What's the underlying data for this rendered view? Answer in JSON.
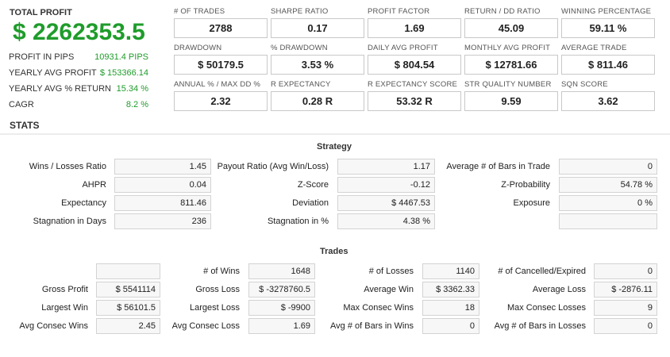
{
  "total": {
    "label": "TOTAL PROFIT",
    "value": "$ 2262353.5"
  },
  "left_stats": [
    {
      "key": "PROFIT IN PIPS",
      "value": "10931.4 PIPS"
    },
    {
      "key": "YEARLY AVG PROFIT",
      "value": "$ 153366.14"
    },
    {
      "key": "YEARLY AVG % RETURN",
      "value": "15.34 %"
    },
    {
      "key": "CAGR",
      "value": "8.2 %"
    }
  ],
  "metrics": [
    [
      {
        "label": "# OF TRADES",
        "value": "2788"
      },
      {
        "label": "SHARPE RATIO",
        "value": "0.17"
      },
      {
        "label": "PROFIT FACTOR",
        "value": "1.69"
      },
      {
        "label": "RETURN / DD RATIO",
        "value": "45.09"
      },
      {
        "label": "WINNING PERCENTAGE",
        "value": "59.11 %"
      }
    ],
    [
      {
        "label": "DRAWDOWN",
        "value": "$ 50179.5"
      },
      {
        "label": "% DRAWDOWN",
        "value": "3.53 %"
      },
      {
        "label": "DAILY AVG PROFIT",
        "value": "$ 804.54"
      },
      {
        "label": "MONTHLY AVG PROFIT",
        "value": "$ 12781.66"
      },
      {
        "label": "AVERAGE TRADE",
        "value": "$ 811.46"
      }
    ],
    [
      {
        "label": "ANNUAL % / MAX DD %",
        "value": "2.32"
      },
      {
        "label": "R EXPECTANCY",
        "value": "0.28 R"
      },
      {
        "label": "R EXPECTANCY SCORE",
        "value": "53.32 R"
      },
      {
        "label": "STR QUALITY NUMBER",
        "value": "9.59"
      },
      {
        "label": "SQN SCORE",
        "value": "3.62"
      }
    ]
  ],
  "stats_title": "STATS",
  "strategy": {
    "title": "Strategy",
    "rows": [
      [
        {
          "label": "Wins / Losses Ratio",
          "value": "1.45"
        },
        {
          "label": "Payout Ratio (Avg Win/Loss)",
          "value": "1.17"
        },
        {
          "label": "Average # of Bars in Trade",
          "value": "0"
        }
      ],
      [
        {
          "label": "AHPR",
          "value": "0.04"
        },
        {
          "label": "Z-Score",
          "value": "-0.12"
        },
        {
          "label": "Z-Probability",
          "value": "54.78 %"
        }
      ],
      [
        {
          "label": "Expectancy",
          "value": "811.46"
        },
        {
          "label": "Deviation",
          "value": "$ 4467.53"
        },
        {
          "label": "Exposure",
          "value": "0 %"
        }
      ],
      [
        {
          "label": "Stagnation in Days",
          "value": "236"
        },
        {
          "label": "Stagnation in %",
          "value": "4.38 %"
        },
        {
          "label": "",
          "value": ""
        }
      ]
    ]
  },
  "trades": {
    "title": "Trades",
    "rows": [
      [
        {
          "label": "",
          "value": ""
        },
        {
          "label": "# of Wins",
          "value": "1648"
        },
        {
          "label": "# of Losses",
          "value": "1140"
        },
        {
          "label": "# of Cancelled/Expired",
          "value": "0"
        }
      ],
      [
        {
          "label": "Gross Profit",
          "value": "$ 5541114"
        },
        {
          "label": "Gross Loss",
          "value": "$ -3278760.5"
        },
        {
          "label": "Average Win",
          "value": "$ 3362.33"
        },
        {
          "label": "Average Loss",
          "value": "$ -2876.11"
        }
      ],
      [
        {
          "label": "Largest Win",
          "value": "$ 56101.5"
        },
        {
          "label": "Largest Loss",
          "value": "$ -9900"
        },
        {
          "label": "Max Consec Wins",
          "value": "18"
        },
        {
          "label": "Max Consec Losses",
          "value": "9"
        }
      ],
      [
        {
          "label": "Avg Consec Wins",
          "value": "2.45"
        },
        {
          "label": "Avg Consec Loss",
          "value": "1.69"
        },
        {
          "label": "Avg # of Bars in Wins",
          "value": "0"
        },
        {
          "label": "Avg # of Bars in Losses",
          "value": "0"
        }
      ]
    ]
  },
  "colors": {
    "profit_green": "#1f9c2b",
    "cell_bg": "#f7f7f7",
    "cell_border": "#d3d3d3"
  }
}
